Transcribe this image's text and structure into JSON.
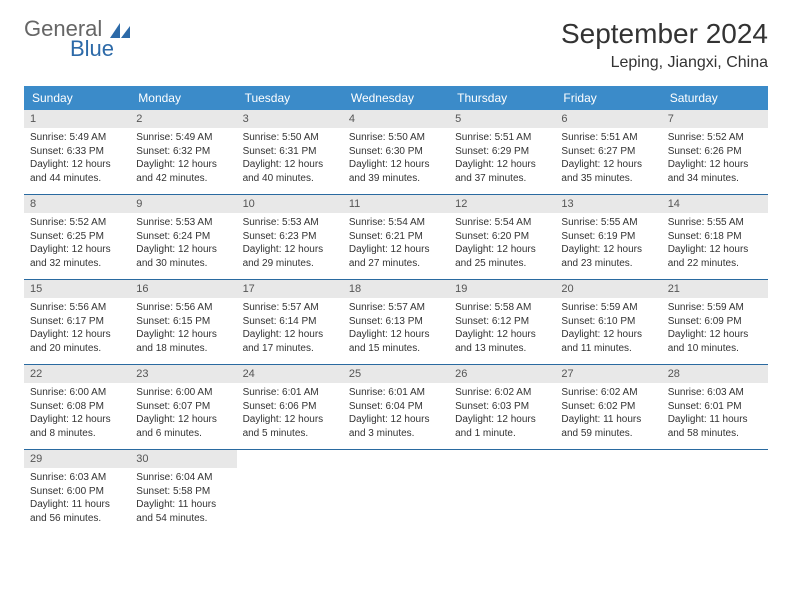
{
  "logo": {
    "word1": "General",
    "word2": "Blue"
  },
  "title": "September 2024",
  "location": "Leping, Jiangxi, China",
  "colors": {
    "header_bg": "#3b8bc9",
    "header_text": "#ffffff",
    "daynum_bg": "#e8e8e8",
    "row_border": "#2a6aa0",
    "logo_accent": "#2d6aa8"
  },
  "dayNames": [
    "Sunday",
    "Monday",
    "Tuesday",
    "Wednesday",
    "Thursday",
    "Friday",
    "Saturday"
  ],
  "weeks": [
    [
      {
        "n": "1",
        "sunrise": "Sunrise: 5:49 AM",
        "sunset": "Sunset: 6:33 PM",
        "daylight": "Daylight: 12 hours and 44 minutes."
      },
      {
        "n": "2",
        "sunrise": "Sunrise: 5:49 AM",
        "sunset": "Sunset: 6:32 PM",
        "daylight": "Daylight: 12 hours and 42 minutes."
      },
      {
        "n": "3",
        "sunrise": "Sunrise: 5:50 AM",
        "sunset": "Sunset: 6:31 PM",
        "daylight": "Daylight: 12 hours and 40 minutes."
      },
      {
        "n": "4",
        "sunrise": "Sunrise: 5:50 AM",
        "sunset": "Sunset: 6:30 PM",
        "daylight": "Daylight: 12 hours and 39 minutes."
      },
      {
        "n": "5",
        "sunrise": "Sunrise: 5:51 AM",
        "sunset": "Sunset: 6:29 PM",
        "daylight": "Daylight: 12 hours and 37 minutes."
      },
      {
        "n": "6",
        "sunrise": "Sunrise: 5:51 AM",
        "sunset": "Sunset: 6:27 PM",
        "daylight": "Daylight: 12 hours and 35 minutes."
      },
      {
        "n": "7",
        "sunrise": "Sunrise: 5:52 AM",
        "sunset": "Sunset: 6:26 PM",
        "daylight": "Daylight: 12 hours and 34 minutes."
      }
    ],
    [
      {
        "n": "8",
        "sunrise": "Sunrise: 5:52 AM",
        "sunset": "Sunset: 6:25 PM",
        "daylight": "Daylight: 12 hours and 32 minutes."
      },
      {
        "n": "9",
        "sunrise": "Sunrise: 5:53 AM",
        "sunset": "Sunset: 6:24 PM",
        "daylight": "Daylight: 12 hours and 30 minutes."
      },
      {
        "n": "10",
        "sunrise": "Sunrise: 5:53 AM",
        "sunset": "Sunset: 6:23 PM",
        "daylight": "Daylight: 12 hours and 29 minutes."
      },
      {
        "n": "11",
        "sunrise": "Sunrise: 5:54 AM",
        "sunset": "Sunset: 6:21 PM",
        "daylight": "Daylight: 12 hours and 27 minutes."
      },
      {
        "n": "12",
        "sunrise": "Sunrise: 5:54 AM",
        "sunset": "Sunset: 6:20 PM",
        "daylight": "Daylight: 12 hours and 25 minutes."
      },
      {
        "n": "13",
        "sunrise": "Sunrise: 5:55 AM",
        "sunset": "Sunset: 6:19 PM",
        "daylight": "Daylight: 12 hours and 23 minutes."
      },
      {
        "n": "14",
        "sunrise": "Sunrise: 5:55 AM",
        "sunset": "Sunset: 6:18 PM",
        "daylight": "Daylight: 12 hours and 22 minutes."
      }
    ],
    [
      {
        "n": "15",
        "sunrise": "Sunrise: 5:56 AM",
        "sunset": "Sunset: 6:17 PM",
        "daylight": "Daylight: 12 hours and 20 minutes."
      },
      {
        "n": "16",
        "sunrise": "Sunrise: 5:56 AM",
        "sunset": "Sunset: 6:15 PM",
        "daylight": "Daylight: 12 hours and 18 minutes."
      },
      {
        "n": "17",
        "sunrise": "Sunrise: 5:57 AM",
        "sunset": "Sunset: 6:14 PM",
        "daylight": "Daylight: 12 hours and 17 minutes."
      },
      {
        "n": "18",
        "sunrise": "Sunrise: 5:57 AM",
        "sunset": "Sunset: 6:13 PM",
        "daylight": "Daylight: 12 hours and 15 minutes."
      },
      {
        "n": "19",
        "sunrise": "Sunrise: 5:58 AM",
        "sunset": "Sunset: 6:12 PM",
        "daylight": "Daylight: 12 hours and 13 minutes."
      },
      {
        "n": "20",
        "sunrise": "Sunrise: 5:59 AM",
        "sunset": "Sunset: 6:10 PM",
        "daylight": "Daylight: 12 hours and 11 minutes."
      },
      {
        "n": "21",
        "sunrise": "Sunrise: 5:59 AM",
        "sunset": "Sunset: 6:09 PM",
        "daylight": "Daylight: 12 hours and 10 minutes."
      }
    ],
    [
      {
        "n": "22",
        "sunrise": "Sunrise: 6:00 AM",
        "sunset": "Sunset: 6:08 PM",
        "daylight": "Daylight: 12 hours and 8 minutes."
      },
      {
        "n": "23",
        "sunrise": "Sunrise: 6:00 AM",
        "sunset": "Sunset: 6:07 PM",
        "daylight": "Daylight: 12 hours and 6 minutes."
      },
      {
        "n": "24",
        "sunrise": "Sunrise: 6:01 AM",
        "sunset": "Sunset: 6:06 PM",
        "daylight": "Daylight: 12 hours and 5 minutes."
      },
      {
        "n": "25",
        "sunrise": "Sunrise: 6:01 AM",
        "sunset": "Sunset: 6:04 PM",
        "daylight": "Daylight: 12 hours and 3 minutes."
      },
      {
        "n": "26",
        "sunrise": "Sunrise: 6:02 AM",
        "sunset": "Sunset: 6:03 PM",
        "daylight": "Daylight: 12 hours and 1 minute."
      },
      {
        "n": "27",
        "sunrise": "Sunrise: 6:02 AM",
        "sunset": "Sunset: 6:02 PM",
        "daylight": "Daylight: 11 hours and 59 minutes."
      },
      {
        "n": "28",
        "sunrise": "Sunrise: 6:03 AM",
        "sunset": "Sunset: 6:01 PM",
        "daylight": "Daylight: 11 hours and 58 minutes."
      }
    ],
    [
      {
        "n": "29",
        "sunrise": "Sunrise: 6:03 AM",
        "sunset": "Sunset: 6:00 PM",
        "daylight": "Daylight: 11 hours and 56 minutes."
      },
      {
        "n": "30",
        "sunrise": "Sunrise: 6:04 AM",
        "sunset": "Sunset: 5:58 PM",
        "daylight": "Daylight: 11 hours and 54 minutes."
      },
      null,
      null,
      null,
      null,
      null
    ]
  ]
}
